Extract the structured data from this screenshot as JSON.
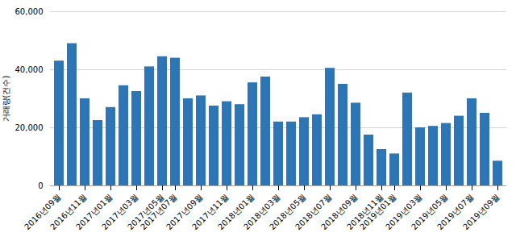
{
  "chart_data": {
    "type": "bar",
    "ylabel": "거래량(건수)",
    "categories": [
      "2016년09월",
      null,
      "2016년11월",
      null,
      "2017년01월",
      null,
      "2017년03월",
      null,
      "2017년05월",
      "2017년07월",
      null,
      "2017년09월",
      null,
      "2017년11월",
      null,
      "2018년01월",
      null,
      "2018년03월",
      null,
      "2018년05월",
      null,
      "2018년07월",
      null,
      "2018년09월",
      null,
      "2018년11월",
      "2019년01월",
      null,
      "2019년03월",
      null,
      "2019년05월",
      null,
      "2019년07월",
      null,
      "2019년09월"
    ],
    "values": [
      43000,
      49000,
      30000,
      22500,
      27000,
      34500,
      32500,
      41000,
      44500,
      44000,
      30000,
      31000,
      27500,
      29000,
      28000,
      35500,
      37500,
      22000,
      22000,
      23500,
      24500,
      40500,
      35000,
      28500,
      17500,
      12500,
      11000,
      32000,
      20000,
      20500,
      21500,
      24000,
      30000,
      25000,
      8500
    ],
    "color": "#2e75b6",
    "ylim": [
      0,
      60000
    ],
    "yticks": [
      0,
      {
        "value": 20000,
        "label": "20,000"
      },
      {
        "value": 40000,
        "label": "40,000"
      },
      {
        "value": 60000,
        "label": "60,000"
      }
    ],
    "grid": true
  }
}
